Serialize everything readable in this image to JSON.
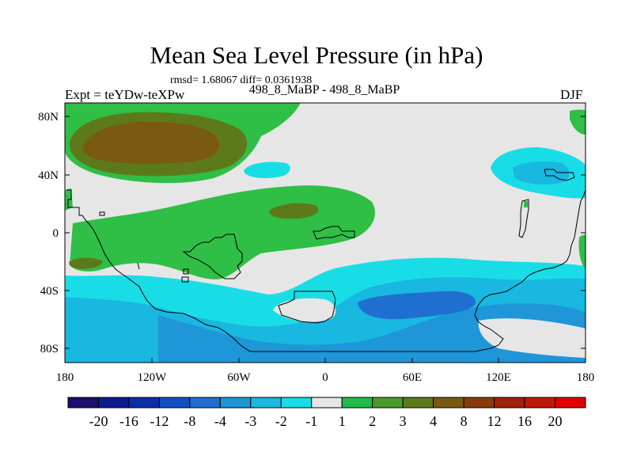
{
  "title": "Mean Sea Level Pressure (in hPa)",
  "stats": "rmsd= 1.68067 diff= 0.0361938",
  "left_label": "Expt = teYDw-teXPw",
  "center_label": "498_8_MaBP - 498_8_MaBP",
  "right_label": "DJF",
  "lat_ticks": [
    "80N",
    "40N",
    "0",
    "40S",
    "80S"
  ],
  "lon_ticks": [
    "180",
    "120W",
    "60W",
    "0",
    "60E",
    "120E",
    "180"
  ],
  "colorbar": {
    "labels": [
      "-20",
      "-16",
      "-12",
      "-8",
      "-4",
      "-3",
      "-2",
      "-1",
      "1",
      "2",
      "3",
      "4",
      "8",
      "12",
      "16",
      "20"
    ],
    "colors": [
      "#1a0e6e",
      "#0b1a8c",
      "#0a2fa8",
      "#0f4fc0",
      "#1f6fd0",
      "#1f96d8",
      "#18b8e0",
      "#18dde6",
      "#e6e6e6",
      "#21bd4a",
      "#4a9a2a",
      "#5d7a1a",
      "#7a5a10",
      "#8a3a0a",
      "#a0200a",
      "#c01808",
      "#e00000"
    ]
  },
  "colors": {
    "background_field": "#e6e6e6",
    "green_field": "#2fbe46",
    "dark_green": "#5d7a1a",
    "brown": "#7a5a10",
    "cyan": "#18dde6",
    "sky": "#18b8e0",
    "blue": "#1f96d8"
  }
}
